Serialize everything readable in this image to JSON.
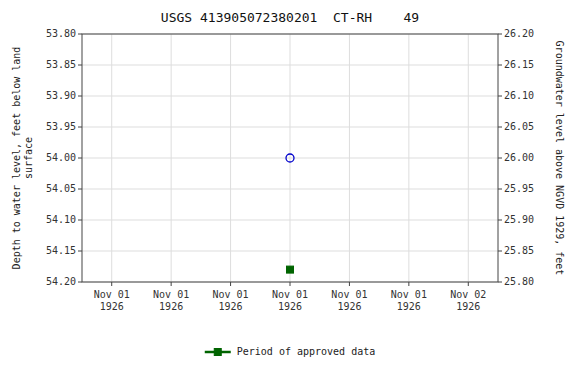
{
  "chart_data": {
    "type": "scatter",
    "title": "USGS 413905072380201  CT-RH    49",
    "y_label": "Depth to water level, feet below land\nsurface",
    "y2_label": "Groundwater level above NGVD 1929, feet",
    "categories": [
      "Nov 01\n1926",
      "Nov 01\n1926",
      "Nov 01\n1926",
      "Nov 01\n1926",
      "Nov 01\n1926",
      "Nov 01\n1926",
      "Nov 02\n1926"
    ],
    "series": [
      {
        "color": "#0000cc",
        "marker": "circle_open",
        "values": [
          null,
          null,
          null,
          54.0,
          null,
          null,
          null
        ]
      },
      {
        "name": "Period of approved data",
        "color": "#006400",
        "marker": "square",
        "values": [
          null,
          null,
          null,
          54.18,
          null,
          null,
          null
        ]
      }
    ],
    "ylim": [
      54.2,
      53.8
    ],
    "yticks": [
      {
        "value": 53.8,
        "label": "53.80"
      },
      {
        "value": 53.85,
        "label": "53.85"
      },
      {
        "value": 53.9,
        "label": "53.90"
      },
      {
        "value": 53.95,
        "label": "53.95"
      },
      {
        "value": 54.0,
        "label": "54.00"
      },
      {
        "value": 54.05,
        "label": "54.05"
      },
      {
        "value": 54.1,
        "label": "54.10"
      },
      {
        "value": 54.15,
        "label": "54.15"
      },
      {
        "value": 54.2,
        "label": "54.20"
      }
    ],
    "y2lim": [
      25.8,
      26.2
    ],
    "y2ticks": [
      {
        "value": 26.2,
        "label": "26.20"
      },
      {
        "value": 26.15,
        "label": "26.15"
      },
      {
        "value": 26.1,
        "label": "26.10"
      },
      {
        "value": 26.05,
        "label": "26.05"
      },
      {
        "value": 26.0,
        "label": "26.00"
      },
      {
        "value": 25.95,
        "label": "25.95"
      },
      {
        "value": 25.9,
        "label": "25.90"
      },
      {
        "value": 25.85,
        "label": "25.85"
      },
      {
        "value": 25.8,
        "label": "25.80"
      }
    ],
    "grid": true,
    "legend": "bottom"
  }
}
